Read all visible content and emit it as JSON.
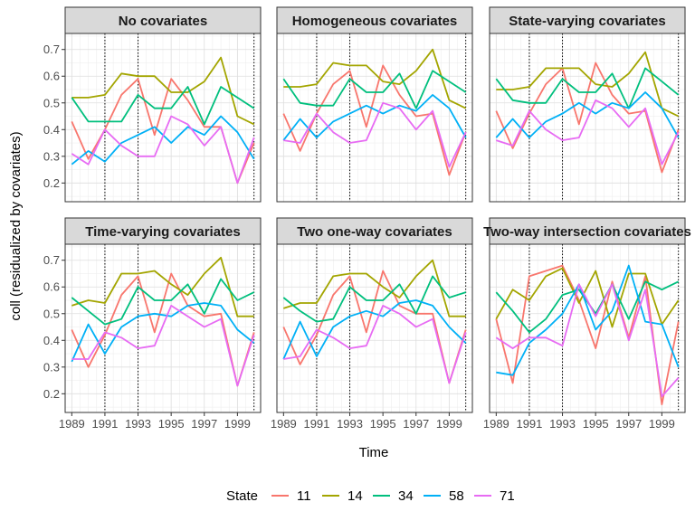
{
  "chart_data": {
    "type": "line",
    "facet_layout": "3 columns x 2 rows",
    "xlabel": "Time",
    "ylabel": "coll (residualized by covariates)",
    "x": [
      1989,
      1990,
      1991,
      1992,
      1993,
      1994,
      1995,
      1996,
      1997,
      1998,
      1999,
      2000
    ],
    "xlim": [
      1988.6,
      2000.4
    ],
    "x_ticks": [
      1989,
      1991,
      1993,
      1995,
      1997,
      1999
    ],
    "ylim": [
      0.13,
      0.76
    ],
    "y_ticks": [
      0.2,
      0.3,
      0.4,
      0.5,
      0.6,
      0.7
    ],
    "y_tick_labels": [
      "0.2",
      "0.3",
      "0.4",
      "0.5",
      "0.6",
      "0.7"
    ],
    "vlines": [
      1991,
      1993,
      2000
    ],
    "grid": true,
    "legend": {
      "title": "State",
      "position": "bottom",
      "entries": [
        {
          "name": "11",
          "color": "#F8766D"
        },
        {
          "name": "14",
          "color": "#A3A500"
        },
        {
          "name": "34",
          "color": "#00BF7D"
        },
        {
          "name": "58",
          "color": "#00B0F6"
        },
        {
          "name": "71",
          "color": "#E76BF3"
        }
      ]
    },
    "panels": [
      {
        "title": "No covariates",
        "series": [
          {
            "name": "11",
            "values": [
              0.43,
              0.29,
              0.4,
              0.53,
              0.59,
              0.38,
              0.59,
              0.51,
              0.41,
              0.41,
              0.2,
              0.35
            ]
          },
          {
            "name": "14",
            "values": [
              0.52,
              0.52,
              0.53,
              0.61,
              0.6,
              0.6,
              0.54,
              0.54,
              0.58,
              0.67,
              0.45,
              0.42
            ]
          },
          {
            "name": "34",
            "values": [
              0.52,
              0.43,
              0.43,
              0.43,
              0.53,
              0.48,
              0.48,
              0.56,
              0.42,
              0.56,
              0.52,
              0.48
            ]
          },
          {
            "name": "58",
            "values": [
              0.27,
              0.32,
              0.28,
              0.35,
              0.38,
              0.41,
              0.35,
              0.41,
              0.38,
              0.45,
              0.39,
              0.29
            ]
          },
          {
            "name": "71",
            "values": [
              0.31,
              0.27,
              0.4,
              0.34,
              0.3,
              0.3,
              0.45,
              0.42,
              0.34,
              0.41,
              0.2,
              0.37
            ]
          }
        ]
      },
      {
        "title": "Homogeneous covariates",
        "series": [
          {
            "name": "11",
            "values": [
              0.46,
              0.32,
              0.46,
              0.57,
              0.62,
              0.41,
              0.64,
              0.53,
              0.45,
              0.46,
              0.23,
              0.39
            ]
          },
          {
            "name": "14",
            "values": [
              0.56,
              0.56,
              0.57,
              0.65,
              0.64,
              0.64,
              0.58,
              0.57,
              0.62,
              0.7,
              0.51,
              0.48
            ]
          },
          {
            "name": "34",
            "values": [
              0.59,
              0.5,
              0.49,
              0.49,
              0.59,
              0.54,
              0.54,
              0.61,
              0.48,
              0.62,
              0.58,
              0.54
            ]
          },
          {
            "name": "58",
            "values": [
              0.36,
              0.44,
              0.37,
              0.43,
              0.46,
              0.49,
              0.46,
              0.49,
              0.47,
              0.53,
              0.48,
              0.37
            ]
          },
          {
            "name": "71",
            "values": [
              0.36,
              0.35,
              0.46,
              0.39,
              0.35,
              0.36,
              0.5,
              0.48,
              0.4,
              0.47,
              0.26,
              0.39
            ]
          }
        ]
      },
      {
        "title": "State-varying covariates",
        "series": [
          {
            "name": "11",
            "values": [
              0.47,
              0.33,
              0.46,
              0.57,
              0.63,
              0.42,
              0.65,
              0.53,
              0.46,
              0.47,
              0.24,
              0.4
            ]
          },
          {
            "name": "14",
            "values": [
              0.55,
              0.55,
              0.56,
              0.63,
              0.63,
              0.63,
              0.57,
              0.56,
              0.61,
              0.69,
              0.48,
              0.45
            ]
          },
          {
            "name": "34",
            "values": [
              0.59,
              0.51,
              0.5,
              0.5,
              0.59,
              0.54,
              0.54,
              0.61,
              0.48,
              0.63,
              0.58,
              0.53
            ]
          },
          {
            "name": "58",
            "values": [
              0.37,
              0.44,
              0.37,
              0.43,
              0.46,
              0.5,
              0.46,
              0.5,
              0.48,
              0.54,
              0.48,
              0.37
            ]
          },
          {
            "name": "71",
            "values": [
              0.36,
              0.34,
              0.47,
              0.4,
              0.36,
              0.37,
              0.51,
              0.48,
              0.41,
              0.48,
              0.27,
              0.39
            ]
          }
        ]
      },
      {
        "title": "Time-varying covariates",
        "series": [
          {
            "name": "11",
            "values": [
              0.44,
              0.3,
              0.42,
              0.57,
              0.64,
              0.43,
              0.65,
              0.53,
              0.49,
              0.5,
              0.23,
              0.43
            ]
          },
          {
            "name": "14",
            "values": [
              0.53,
              0.55,
              0.54,
              0.65,
              0.65,
              0.66,
              0.61,
              0.57,
              0.65,
              0.71,
              0.49,
              0.49
            ]
          },
          {
            "name": "34",
            "values": [
              0.56,
              0.51,
              0.46,
              0.48,
              0.6,
              0.55,
              0.55,
              0.61,
              0.5,
              0.63,
              0.55,
              0.58
            ]
          },
          {
            "name": "58",
            "values": [
              0.32,
              0.46,
              0.35,
              0.45,
              0.49,
              0.5,
              0.49,
              0.53,
              0.54,
              0.53,
              0.44,
              0.39
            ]
          },
          {
            "name": "71",
            "values": [
              0.33,
              0.33,
              0.43,
              0.41,
              0.37,
              0.38,
              0.53,
              0.49,
              0.45,
              0.48,
              0.23,
              0.42
            ]
          }
        ]
      },
      {
        "title": "Two one-way covariates",
        "series": [
          {
            "name": "11",
            "values": [
              0.45,
              0.31,
              0.42,
              0.57,
              0.64,
              0.43,
              0.66,
              0.53,
              0.5,
              0.5,
              0.24,
              0.44
            ]
          },
          {
            "name": "14",
            "values": [
              0.52,
              0.54,
              0.54,
              0.64,
              0.65,
              0.65,
              0.6,
              0.56,
              0.64,
              0.7,
              0.49,
              0.49
            ]
          },
          {
            "name": "34",
            "values": [
              0.56,
              0.51,
              0.47,
              0.48,
              0.6,
              0.55,
              0.55,
              0.61,
              0.5,
              0.64,
              0.56,
              0.58
            ]
          },
          {
            "name": "58",
            "values": [
              0.33,
              0.47,
              0.34,
              0.45,
              0.49,
              0.51,
              0.49,
              0.54,
              0.55,
              0.53,
              0.45,
              0.39
            ]
          },
          {
            "name": "71",
            "values": [
              0.33,
              0.34,
              0.44,
              0.41,
              0.37,
              0.38,
              0.53,
              0.5,
              0.45,
              0.48,
              0.24,
              0.43
            ]
          }
        ]
      },
      {
        "title": "Two-way intersection covariates",
        "series": [
          {
            "name": "11",
            "values": [
              0.48,
              0.24,
              0.64,
              0.66,
              0.68,
              0.55,
              0.37,
              0.62,
              0.41,
              0.64,
              0.16,
              0.47
            ]
          },
          {
            "name": "14",
            "values": [
              0.48,
              0.59,
              0.55,
              0.64,
              0.67,
              0.54,
              0.66,
              0.45,
              0.65,
              0.65,
              0.46,
              0.55
            ]
          },
          {
            "name": "34",
            "values": [
              0.58,
              0.51,
              0.43,
              0.48,
              0.57,
              0.59,
              0.5,
              0.61,
              0.48,
              0.62,
              0.59,
              0.62
            ]
          },
          {
            "name": "58",
            "values": [
              0.28,
              0.27,
              0.39,
              0.44,
              0.5,
              0.61,
              0.44,
              0.51,
              0.68,
              0.47,
              0.46,
              0.3
            ]
          },
          {
            "name": "71",
            "values": [
              0.41,
              0.37,
              0.41,
              0.41,
              0.38,
              0.61,
              0.49,
              0.61,
              0.4,
              0.59,
              0.19,
              0.26
            ]
          }
        ]
      }
    ]
  }
}
